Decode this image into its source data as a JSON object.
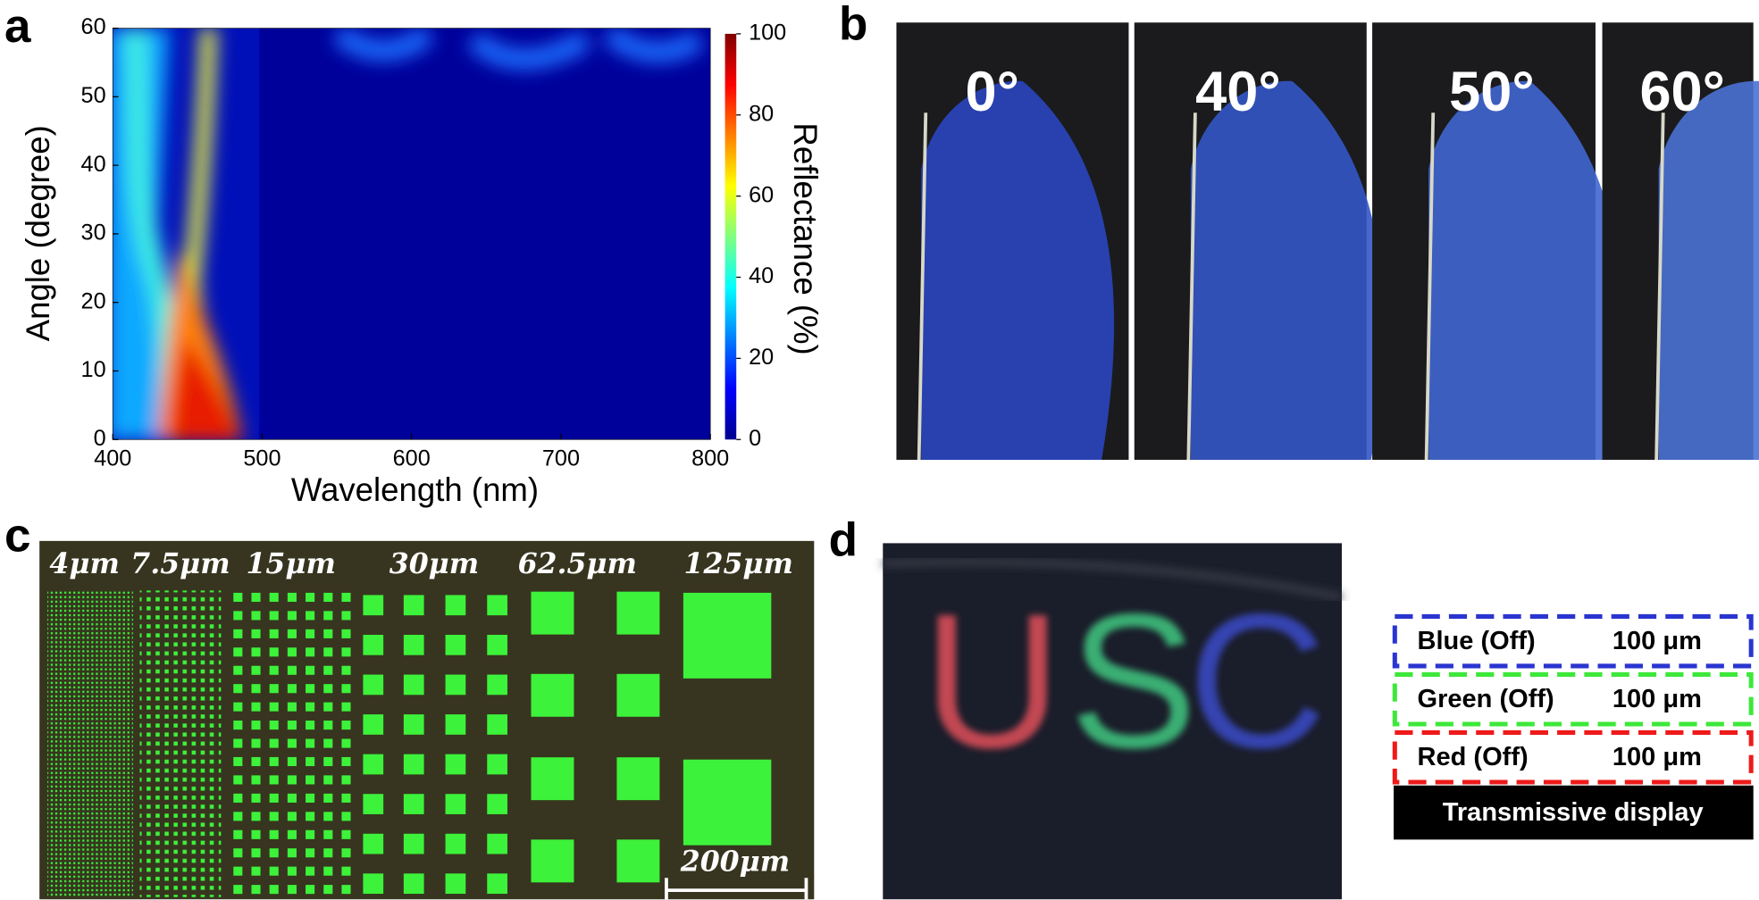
{
  "panel_labels": [
    "a",
    "b",
    "c",
    "d"
  ],
  "chart_data": {
    "type": "heatmap",
    "xlabel": "Wavelength (nm)",
    "ylabel": "Angle (degree)",
    "xlim": [
      400,
      800
    ],
    "xticks": [
      400,
      500,
      600,
      700,
      800
    ],
    "ylim": [
      0,
      60
    ],
    "yticks": [
      0,
      10,
      20,
      30,
      40,
      50,
      60
    ],
    "zlabel": "Reflectance (%)",
    "zlim": [
      0,
      100
    ],
    "zticks": [
      0,
      20,
      40,
      60,
      80,
      100
    ],
    "colormap": "jet"
  },
  "photos": {
    "angles": [
      "0°",
      "40°",
      "50°",
      "60°"
    ]
  },
  "micrograph": {
    "sizes": [
      "4μm",
      "7.5μm",
      "15μm",
      "30μm",
      "62.5μm",
      "125μm"
    ],
    "scale_bar": "200μm"
  },
  "display": {
    "letters": [
      "U",
      "S",
      "C"
    ],
    "layers": [
      {
        "name": "Blue (Off)",
        "thickness": "100 μm",
        "color": "#2a35d0"
      },
      {
        "name": "Green (Off)",
        "thickness": "100 μm",
        "color": "#3de83a"
      },
      {
        "name": "Red (Off)",
        "thickness": "100 μm",
        "color": "#ee1a1a"
      }
    ],
    "base": "Transmissive display"
  }
}
